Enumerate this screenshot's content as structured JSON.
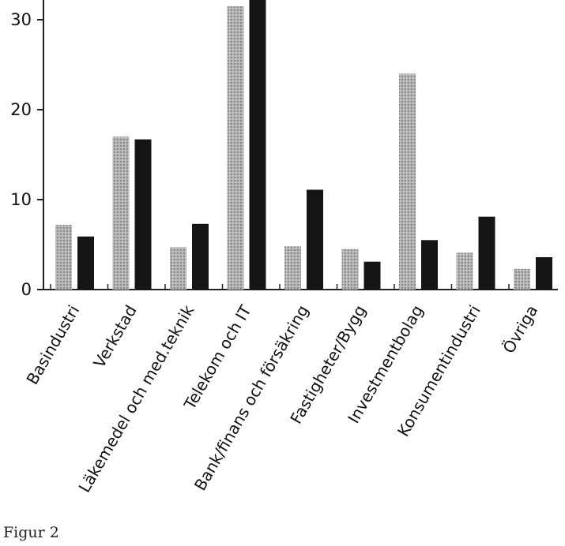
{
  "caption": "Figur 2",
  "colors": {
    "series_a": "#a9a9a9",
    "series_b": "#151515",
    "axis": "#222222"
  },
  "chart_data": {
    "type": "bar",
    "categories": [
      "Basindustri",
      "Verkstad",
      "Läkemedel och med.teknik",
      "Telekom och IT",
      "Bank/finans och försäkring",
      "Fastigheter/Bygg",
      "Investmentbolag",
      "Konsumentindustri",
      "Övriga"
    ],
    "series": [
      {
        "values": [
          7.2,
          17.0,
          4.7,
          31.5,
          4.8,
          4.5,
          24.0,
          4.1,
          2.3
        ]
      },
      {
        "values": [
          5.9,
          16.7,
          7.3,
          33.0,
          11.1,
          3.1,
          5.5,
          8.1,
          3.6
        ]
      }
    ],
    "yticks": [
      0,
      10,
      20,
      30
    ],
    "ylim": [
      0,
      33
    ],
    "grid": false,
    "title": "",
    "xlabel": "",
    "ylabel": ""
  }
}
